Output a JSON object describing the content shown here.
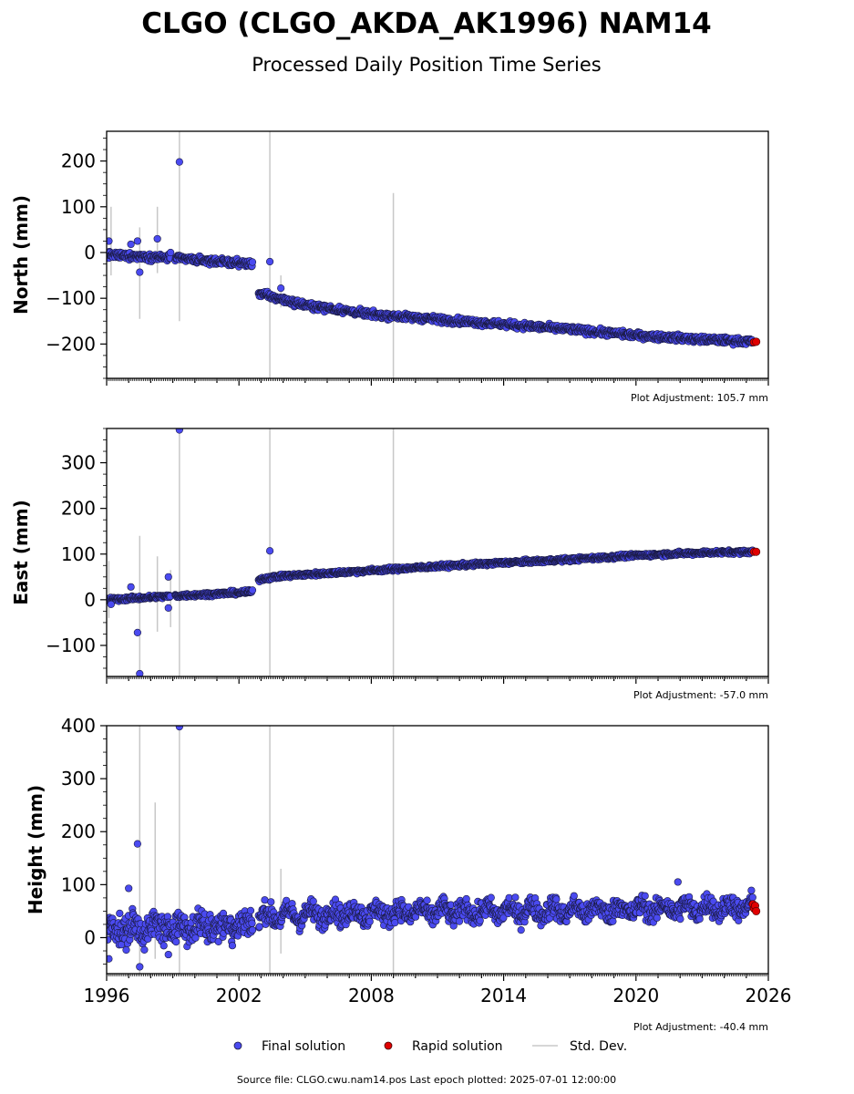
{
  "title": "CLGO (CLGO_AKDA_AK1996) NAM14",
  "subtitle": "Processed Daily Position Time Series",
  "footer": "Source file: CLGO.cwu.nam14.pos  Last epoch plotted: 2025-07-01 12:00:00",
  "colors": {
    "final": "#4a4af0",
    "final_edge": "#1a1a40",
    "rapid": "#e00000",
    "stddev": "#c8c8c8"
  },
  "legend": {
    "placement": "bottom-center",
    "items": [
      {
        "label": "Final solution",
        "marker": "circle",
        "color": "#4a4af0"
      },
      {
        "label": "Rapid solution",
        "marker": "circle",
        "color": "#e00000"
      },
      {
        "label": "Std. Dev.",
        "marker": "line",
        "color": "#c8c8c8"
      }
    ]
  },
  "chart_data": [
    {
      "type": "scatter",
      "ylabel": "North (mm)",
      "adjustment": "Plot Adjustment: 105.7 mm",
      "xlim": [
        1996,
        2026
      ],
      "ylim": [
        -275,
        265
      ],
      "yticks": [
        -200,
        -100,
        0,
        100,
        200
      ],
      "ytick_labels": [
        "−200",
        "−100",
        "0",
        "100",
        "200"
      ],
      "trend": [
        [
          1996.0,
          -5
        ],
        [
          1999.0,
          -12
        ],
        [
          2002.6,
          -25
        ],
        [
          2002.9,
          -88
        ],
        [
          2003.5,
          -97
        ],
        [
          2005,
          -115
        ],
        [
          2008,
          -135
        ],
        [
          2011,
          -146
        ],
        [
          2014,
          -157
        ],
        [
          2017,
          -168
        ],
        [
          2020,
          -181
        ],
        [
          2023,
          -190
        ],
        [
          2025.45,
          -195
        ]
      ],
      "noise": 5,
      "outliers": [
        [
          1996.1,
          25
        ],
        [
          1997.1,
          18
        ],
        [
          1997.4,
          25
        ],
        [
          1997.5,
          -43
        ],
        [
          1998.3,
          30
        ],
        [
          1998.9,
          0
        ],
        [
          1999.3,
          198
        ],
        [
          2003.4,
          -20
        ],
        [
          2003.9,
          -78
        ]
      ],
      "stddev_bars": [
        [
          1996.2,
          -50,
          100
        ],
        [
          1997.5,
          -145,
          55
        ],
        [
          1998.3,
          -45,
          100
        ],
        [
          1999.3,
          -150,
          265
        ],
        [
          2003.4,
          -275,
          265
        ],
        [
          2003.9,
          -120,
          -50
        ],
        [
          2009.0,
          -275,
          130
        ]
      ],
      "rapid": [
        [
          2025.35,
          -196
        ],
        [
          2025.45,
          -195
        ]
      ]
    },
    {
      "type": "scatter",
      "ylabel": "East (mm)",
      "adjustment": "Plot Adjustment: -57.0 mm",
      "xlim": [
        1996,
        2026
      ],
      "ylim": [
        -168,
        375
      ],
      "yticks": [
        -100,
        0,
        100,
        200,
        300
      ],
      "ytick_labels": [
        "−100",
        "0",
        "100",
        "200",
        "300"
      ],
      "trend": [
        [
          1996.0,
          0
        ],
        [
          1999.0,
          8
        ],
        [
          2002.6,
          17
        ],
        [
          2002.9,
          45
        ],
        [
          2004,
          52
        ],
        [
          2006,
          58
        ],
        [
          2008,
          64
        ],
        [
          2011,
          73
        ],
        [
          2014,
          81
        ],
        [
          2017,
          88
        ],
        [
          2020,
          97
        ],
        [
          2023,
          103
        ],
        [
          2025.45,
          105
        ]
      ],
      "noise": 3,
      "outliers": [
        [
          1996.2,
          -10
        ],
        [
          1997.1,
          28
        ],
        [
          1997.4,
          -72
        ],
        [
          1997.5,
          -162
        ],
        [
          1998.8,
          50
        ],
        [
          1998.8,
          -18
        ],
        [
          1999.3,
          372
        ],
        [
          2003.4,
          107
        ]
      ],
      "stddev_bars": [
        [
          1996.1,
          -40,
          85
        ],
        [
          1997.5,
          -168,
          140
        ],
        [
          1998.3,
          -70,
          95
        ],
        [
          1998.9,
          -60,
          65
        ],
        [
          1999.3,
          -168,
          375
        ],
        [
          2003.4,
          -168,
          375
        ],
        [
          2009.0,
          -168,
          375
        ]
      ],
      "rapid": [
        [
          2025.35,
          105
        ],
        [
          2025.45,
          105
        ]
      ]
    },
    {
      "type": "scatter",
      "ylabel": "Height (mm)",
      "adjustment": "Plot Adjustment: -40.4 mm",
      "xlim": [
        1996,
        2026
      ],
      "ylim": [
        -68,
        400
      ],
      "xticks": [
        1996,
        2002,
        2008,
        2014,
        2020,
        2026
      ],
      "yticks": [
        0,
        100,
        200,
        300,
        400
      ],
      "ytick_labels": [
        "0",
        "100",
        "200",
        "300",
        "400"
      ],
      "trend": [
        [
          1996.0,
          15
        ],
        [
          1999.0,
          20
        ],
        [
          2002.6,
          25
        ],
        [
          2003.0,
          40
        ],
        [
          2006,
          45
        ],
        [
          2010,
          48
        ],
        [
          2014,
          50
        ],
        [
          2018,
          52
        ],
        [
          2022,
          55
        ],
        [
          2025.45,
          58
        ]
      ],
      "noise": 14,
      "outliers": [
        [
          1996.1,
          -40
        ],
        [
          1997.0,
          93
        ],
        [
          1997.4,
          177
        ],
        [
          1997.5,
          -55
        ],
        [
          1998.8,
          -32
        ],
        [
          1999.3,
          398
        ],
        [
          2001.7,
          -15
        ],
        [
          2021.9,
          105
        ]
      ],
      "stddev_bars": [
        [
          1997.5,
          -68,
          400
        ],
        [
          1998.2,
          -40,
          255
        ],
        [
          1999.3,
          -68,
          400
        ],
        [
          2003.4,
          -68,
          400
        ],
        [
          2003.9,
          -30,
          130
        ],
        [
          2009.0,
          -68,
          400
        ]
      ],
      "rapid": [
        [
          2025.3,
          63
        ],
        [
          2025.35,
          55
        ],
        [
          2025.4,
          60
        ],
        [
          2025.45,
          50
        ]
      ]
    }
  ]
}
